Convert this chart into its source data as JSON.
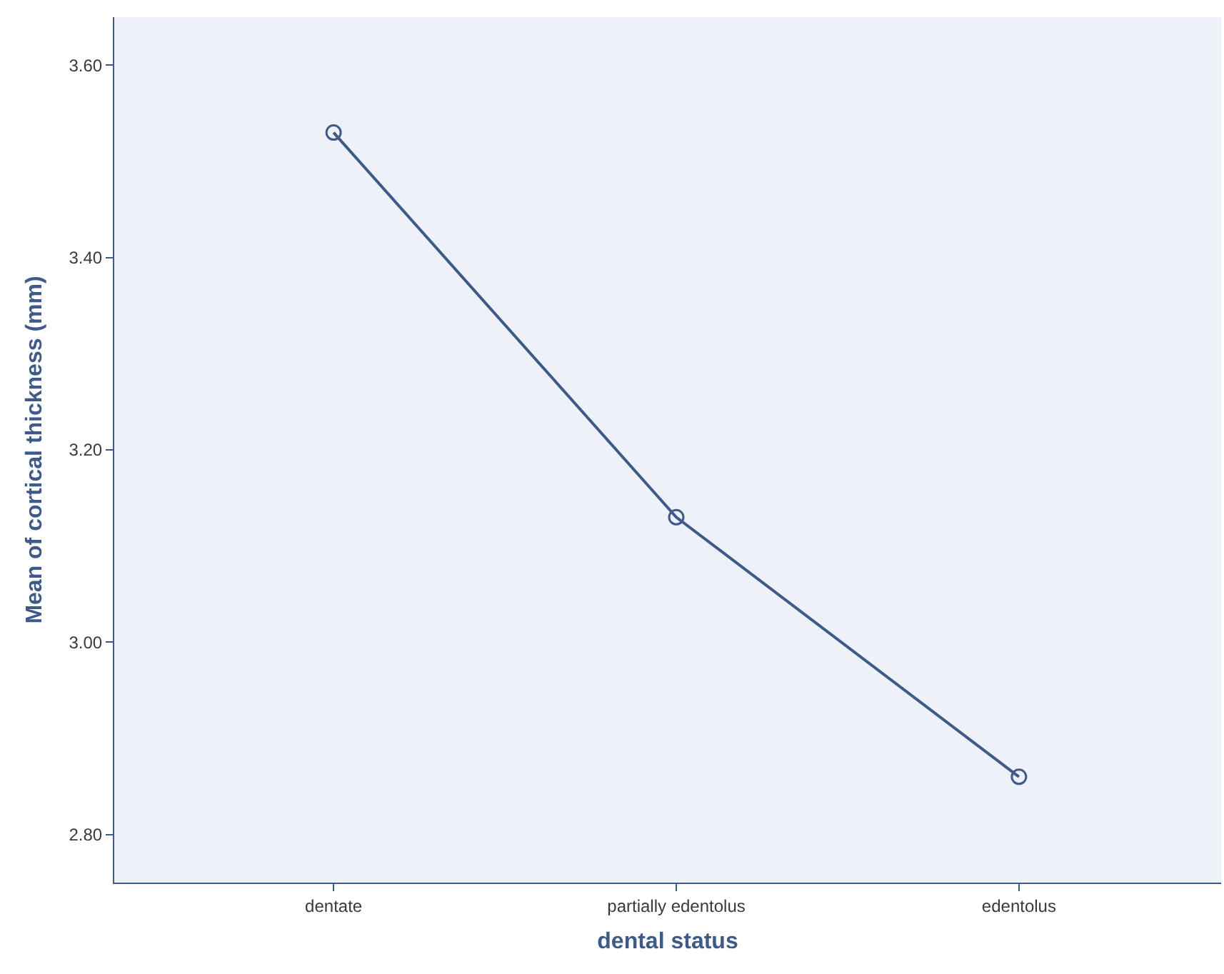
{
  "chart_data": {
    "type": "line",
    "xlabel": "dental status",
    "ylabel": "Mean of cortical thickness (mm)",
    "categories": [
      "dentate",
      "partially edentolus",
      "edentolus"
    ],
    "series": [
      {
        "color": "#3d5a8a",
        "values": [
          3.53,
          3.13,
          2.86
        ]
      }
    ],
    "ylim": [
      2.75,
      3.65
    ],
    "yticks": [
      {
        "value": 2.8,
        "label": "2.80"
      },
      {
        "value": 3.0,
        "label": "3.00"
      },
      {
        "value": 3.2,
        "label": "3.20"
      },
      {
        "value": 3.4,
        "label": "3.40"
      },
      {
        "value": 3.6,
        "label": "3.60"
      }
    ],
    "grid": false,
    "marker": "circle",
    "line_style": "solid"
  }
}
